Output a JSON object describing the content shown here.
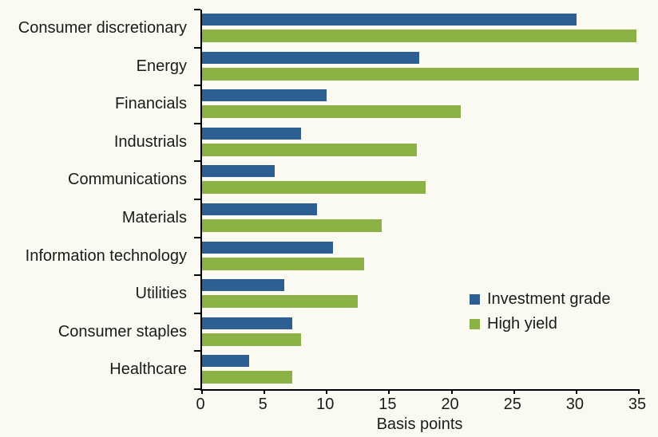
{
  "chart_data": {
    "type": "bar",
    "orientation": "horizontal",
    "title": "",
    "xlabel": "Basis points",
    "ylabel": "",
    "xlim": [
      0,
      35
    ],
    "xticks": [
      0,
      5,
      10,
      15,
      20,
      25,
      30,
      35
    ],
    "grid": false,
    "legend_position": "right-middle",
    "categories": [
      "Consumer discretionary",
      "Energy",
      "Financials",
      "Industrials",
      "Communications",
      "Materials",
      "Information technology",
      "Utilities",
      "Consumer staples",
      "Healthcare"
    ],
    "series": [
      {
        "name": "Investment grade",
        "color": "#2D5F92",
        "values": [
          30.0,
          17.4,
          10.0,
          7.9,
          5.8,
          9.2,
          10.5,
          6.6,
          7.2,
          3.8
        ]
      },
      {
        "name": "High yield",
        "color": "#8BB043",
        "values": [
          34.8,
          35.0,
          20.7,
          17.2,
          17.9,
          14.4,
          13.0,
          12.5,
          7.9,
          7.2
        ]
      }
    ]
  },
  "colors": {
    "background": "#FBFAF2",
    "axis": "#000000",
    "text": "#1B1B1B",
    "investment_grade": "#2D5F92",
    "high_yield": "#8BB043"
  }
}
